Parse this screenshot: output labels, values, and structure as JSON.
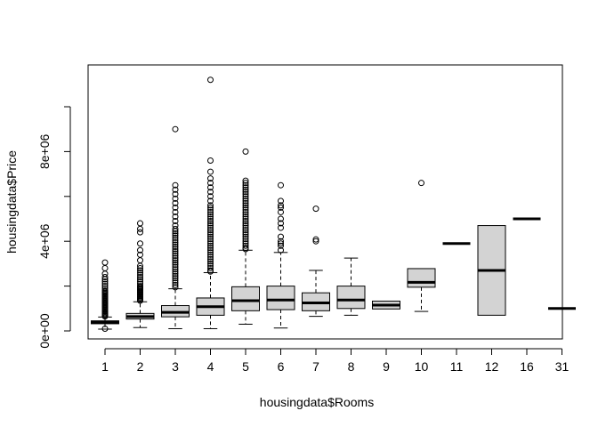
{
  "chart_data": {
    "type": "boxplot",
    "title": "",
    "xlabel": "housingdata$Rooms",
    "ylabel": "housingdata$Price",
    "ylim": [
      -500000,
      11500000
    ],
    "y_ticks": [
      0,
      2000000,
      4000000,
      6000000,
      8000000,
      10000000
    ],
    "y_tick_labels": [
      "0e+00",
      "",
      "4e+06",
      "",
      "8e+06",
      ""
    ],
    "grid": false,
    "box_fill": "#d3d3d3",
    "categories": [
      "1",
      "2",
      "3",
      "4",
      "5",
      "6",
      "7",
      "8",
      "9",
      "10",
      "11",
      "12",
      "16",
      "31"
    ],
    "boxes": [
      {
        "label": "1",
        "low": 80000,
        "q1": 320000,
        "median": 380000,
        "q3": 450000,
        "high": 620000,
        "outliers": [
          650000,
          700000,
          750000,
          800000,
          850000,
          900000,
          950000,
          1000000,
          1050000,
          1100000,
          1150000,
          1200000,
          1250000,
          1300000,
          1350000,
          1400000,
          1450000,
          1500000,
          1550000,
          1600000,
          1650000,
          1700000,
          1750000,
          1800000,
          1900000,
          2000000,
          2100000,
          2200000,
          2300000,
          2400000,
          2550000,
          2800000,
          3050000,
          100000
        ]
      },
      {
        "label": "2",
        "low": 150000,
        "q1": 530000,
        "median": 640000,
        "q3": 780000,
        "high": 1300000,
        "outliers": [
          1350000,
          1400000,
          1450000,
          1500000,
          1550000,
          1600000,
          1650000,
          1700000,
          1750000,
          1800000,
          1850000,
          1900000,
          1950000,
          2000000,
          2100000,
          2200000,
          2300000,
          2400000,
          2500000,
          2600000,
          2700000,
          2800000,
          2900000,
          3150000,
          3400000,
          3600000,
          3900000,
          4400000,
          4550000,
          4800000
        ]
      },
      {
        "label": "3",
        "low": 100000,
        "q1": 630000,
        "median": 830000,
        "q3": 1130000,
        "high": 1880000,
        "outliers": [
          1950000,
          2050000,
          2150000,
          2250000,
          2350000,
          2450000,
          2550000,
          2650000,
          2750000,
          2850000,
          2950000,
          3050000,
          3150000,
          3250000,
          3350000,
          3450000,
          3550000,
          3650000,
          3750000,
          3850000,
          3950000,
          4050000,
          4150000,
          4250000,
          4350000,
          4450000,
          4550000,
          4700000,
          4900000,
          5100000,
          5300000,
          5500000,
          5700000,
          5900000,
          6100000,
          6300000,
          6500000,
          9000000
        ]
      },
      {
        "label": "4",
        "low": 100000,
        "q1": 700000,
        "median": 1080000,
        "q3": 1470000,
        "high": 2600000,
        "outliers": [
          2650000,
          2700000,
          2800000,
          2900000,
          3000000,
          3100000,
          3200000,
          3300000,
          3400000,
          3500000,
          3600000,
          3700000,
          3800000,
          3900000,
          4000000,
          4100000,
          4200000,
          4300000,
          4400000,
          4500000,
          4600000,
          4700000,
          4800000,
          4900000,
          5000000,
          5100000,
          5200000,
          5300000,
          5400000,
          5500000,
          5600000,
          5800000,
          6000000,
          6200000,
          6400000,
          6600000,
          6800000,
          7100000,
          7600000,
          11200000
        ]
      },
      {
        "label": "5",
        "low": 300000,
        "q1": 900000,
        "median": 1350000,
        "q3": 1970000,
        "high": 3600000,
        "outliers": [
          3650000,
          3700000,
          3800000,
          3900000,
          4000000,
          4100000,
          4200000,
          4300000,
          4400000,
          4500000,
          4600000,
          4700000,
          4800000,
          4900000,
          5000000,
          5100000,
          5200000,
          5300000,
          5400000,
          5500000,
          5600000,
          5700000,
          5800000,
          5900000,
          6000000,
          6100000,
          6200000,
          6300000,
          6400000,
          6500000,
          6600000,
          6700000,
          8000000
        ]
      },
      {
        "label": "6",
        "low": 130000,
        "q1": 950000,
        "median": 1380000,
        "q3": 2000000,
        "high": 3500000,
        "outliers": [
          3600000,
          3800000,
          3900000,
          4000000,
          4200000,
          4600000,
          4800000,
          5000000,
          5300000,
          5500000,
          5600000,
          5800000,
          6500000
        ]
      },
      {
        "label": "7",
        "low": 650000,
        "q1": 900000,
        "median": 1250000,
        "q3": 1700000,
        "high": 2700000,
        "outliers": [
          4000000,
          4080000,
          5450000
        ]
      },
      {
        "label": "8",
        "low": 700000,
        "q1": 1000000,
        "median": 1380000,
        "q3": 2000000,
        "high": 3250000,
        "outliers": []
      },
      {
        "label": "9",
        "low": 980000,
        "q1": 980000,
        "median": 1150000,
        "q3": 1330000,
        "high": 1330000,
        "outliers": []
      },
      {
        "label": "10",
        "low": 870000,
        "q1": 1950000,
        "median": 2170000,
        "q3": 2780000,
        "high": 2780000,
        "outliers": [
          6600000
        ]
      },
      {
        "label": "11",
        "low": 3900000,
        "q1": 3900000,
        "median": 3900000,
        "q3": 3900000,
        "high": 3900000,
        "outliers": []
      },
      {
        "label": "12",
        "low": 700000,
        "q1": 700000,
        "median": 2700000,
        "q3": 4700000,
        "high": 4700000,
        "outliers": []
      },
      {
        "label": "16",
        "low": 5000000,
        "q1": 5000000,
        "median": 5000000,
        "q3": 5000000,
        "high": 5000000,
        "outliers": []
      },
      {
        "label": "31",
        "low": 1000000,
        "q1": 1000000,
        "median": 1000000,
        "q3": 1000000,
        "high": 1000000,
        "outliers": []
      }
    ]
  }
}
